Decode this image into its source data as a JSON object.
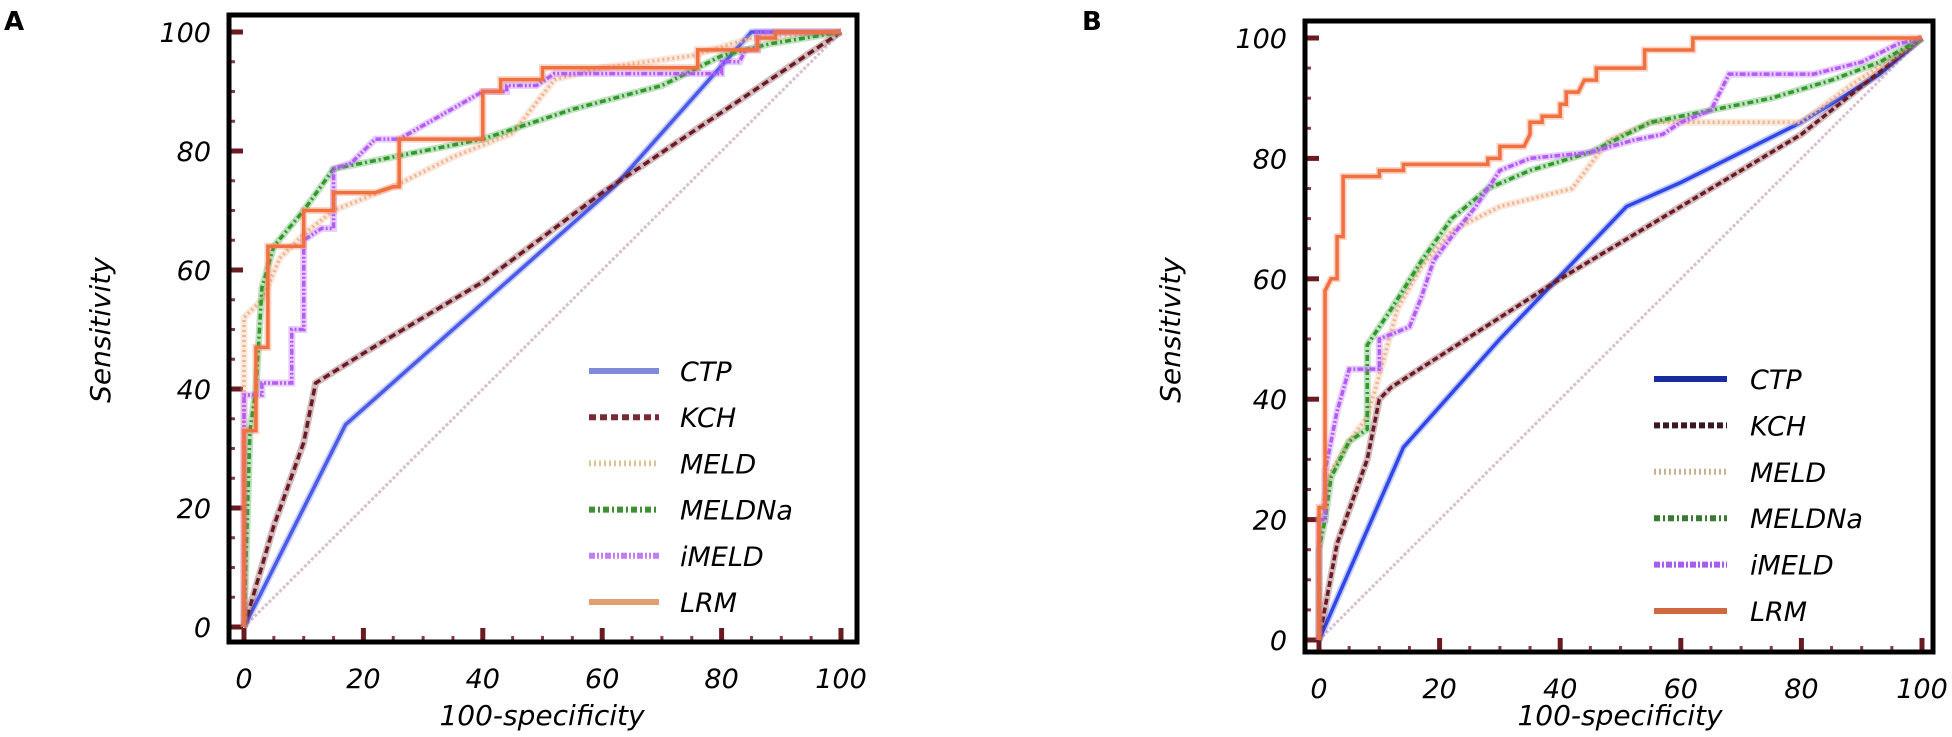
{
  "chart_data": [
    {
      "type": "line",
      "panel_label": "A",
      "title": "",
      "xlabel": "100-specificity",
      "ylabel": "Sensitivity",
      "xlim": [
        0,
        100
      ],
      "ylim": [
        0,
        100
      ],
      "xticks": [
        0,
        20,
        40,
        60,
        80,
        100
      ],
      "yticks": [
        0,
        20,
        40,
        60,
        80,
        100
      ],
      "grid": false,
      "legend_position": "bottom-right",
      "reference_line": {
        "name": "Reference",
        "color": "#d8bfcf",
        "x": [
          0,
          100
        ],
        "y": [
          0,
          100
        ]
      },
      "series": [
        {
          "name": "CTP",
          "color": "#4a5be8",
          "legend_color": "#7f8ad9",
          "dash": "",
          "x": [
            0,
            17,
            62,
            85,
            100
          ],
          "y": [
            0,
            34,
            74,
            100,
            100
          ]
        },
        {
          "name": "KCH",
          "color": "#6b1a24",
          "legend_color": "#7a2a35",
          "dash": "7,4",
          "x": [
            0,
            5,
            10,
            12,
            20,
            40,
            60,
            100
          ],
          "y": [
            0,
            17,
            31,
            41,
            46,
            58,
            73,
            100
          ]
        },
        {
          "name": "MELD",
          "color": "#f0b48f",
          "legend_color": "#dcc49a",
          "dash": "2,3",
          "x": [
            0,
            0,
            3,
            6,
            10,
            15,
            25,
            35,
            45,
            52,
            60,
            75,
            85,
            100
          ],
          "y": [
            0,
            52,
            55,
            62,
            66,
            70,
            74,
            79,
            83,
            92,
            94,
            96,
            99,
            100
          ]
        },
        {
          "name": "MELDNa",
          "color": "#2f9a2a",
          "legend_color": "#3f8f35",
          "dash": "6,3,2,3",
          "x": [
            0,
            1,
            2,
            3,
            5,
            10,
            15,
            20,
            30,
            40,
            55,
            70,
            80,
            88,
            100
          ],
          "y": [
            0,
            33,
            40,
            57,
            64,
            70,
            77,
            78,
            80,
            82,
            87,
            91,
            96,
            98,
            100
          ]
        },
        {
          "name": "iMELD",
          "color": "#b45cf5",
          "legend_color": "#c07ef2",
          "dash": "6,2,2,2,2,2",
          "x": [
            0,
            0,
            3,
            3,
            8,
            8,
            10,
            10,
            13,
            15,
            15,
            18,
            20,
            22,
            26,
            40,
            44,
            44,
            49,
            52,
            80,
            80,
            83,
            84,
            86,
            86,
            100
          ],
          "y": [
            0,
            39,
            39,
            41,
            41,
            50,
            50,
            65,
            67,
            67,
            77,
            78,
            80,
            82,
            82,
            90,
            90,
            91,
            91,
            93,
            93,
            95,
            95,
            97,
            97,
            100,
            100
          ]
        },
        {
          "name": "LRM",
          "color": "#f07040",
          "legend_color": "#e0a070",
          "dash": "",
          "x": [
            0,
            0,
            2,
            2,
            4,
            4,
            10,
            10,
            15,
            15,
            22,
            25,
            26,
            26,
            40,
            40,
            43,
            43,
            50,
            50,
            76,
            76,
            86,
            86,
            89,
            89,
            100
          ],
          "y": [
            0,
            33,
            33,
            47,
            47,
            64,
            64,
            70,
            70,
            73,
            73,
            74,
            74,
            82,
            82,
            90,
            90,
            92,
            92,
            94,
            94,
            97,
            97,
            99,
            99,
            100,
            100
          ]
        }
      ]
    },
    {
      "type": "line",
      "panel_label": "B",
      "title": "",
      "xlabel": "100-specificity",
      "ylabel": "Sensitivity",
      "xlim": [
        0,
        100
      ],
      "ylim": [
        0,
        100
      ],
      "xticks": [
        0,
        20,
        40,
        60,
        80,
        100
      ],
      "yticks": [
        0,
        20,
        40,
        60,
        80,
        100
      ],
      "grid": false,
      "legend_position": "bottom-right",
      "reference_line": {
        "name": "Reference",
        "color": "#d8bfcf",
        "x": [
          0,
          100
        ],
        "y": [
          0,
          100
        ]
      },
      "series": [
        {
          "name": "CTP",
          "color": "#3048e8",
          "legend_color": "#1a2aa0",
          "dash": "",
          "x": [
            0,
            14,
            30,
            51,
            60,
            80,
            93,
            100
          ],
          "y": [
            0,
            32,
            50,
            72,
            76,
            86,
            94,
            100
          ]
        },
        {
          "name": "KCH",
          "color": "#6b1a24",
          "legend_color": "#3a1a20",
          "dash": "6,3",
          "x": [
            0,
            3,
            8,
            10,
            12,
            40,
            60,
            80,
            100
          ],
          "y": [
            0,
            16,
            30,
            40,
            42,
            60,
            72,
            84,
            100
          ]
        },
        {
          "name": "MELD",
          "color": "#f0b48f",
          "legend_color": "#c8b090",
          "dash": "2,3",
          "x": [
            0,
            0,
            2,
            5,
            8,
            10,
            13,
            17,
            22,
            30,
            42,
            48,
            55,
            80,
            88,
            100
          ],
          "y": [
            0,
            20,
            28,
            33,
            37,
            44,
            55,
            62,
            68,
            72,
            75,
            83,
            86,
            86,
            92,
            100
          ]
        },
        {
          "name": "MELDNa",
          "color": "#2f9a2a",
          "legend_color": "#3a7a35",
          "dash": "6,3,2,3",
          "x": [
            0,
            0,
            1,
            2,
            5,
            8,
            8,
            12,
            17,
            22,
            28,
            35,
            45,
            55,
            65,
            75,
            85,
            93,
            100
          ],
          "y": [
            0,
            15,
            20,
            27,
            33,
            35,
            49,
            55,
            63,
            70,
            75,
            78,
            81,
            86,
            88,
            90,
            93,
            96,
            100
          ]
        },
        {
          "name": "iMELD",
          "color": "#b45cf5",
          "legend_color": "#a85cf0",
          "dash": "6,2,2,2",
          "x": [
            0,
            0,
            1,
            1,
            2,
            3,
            5,
            10,
            10,
            15,
            17,
            19,
            22,
            26,
            30,
            35,
            45,
            52,
            57,
            60,
            65,
            68,
            82,
            90,
            96,
            100
          ],
          "y": [
            0,
            20,
            20,
            28,
            33,
            38,
            45,
            45,
            50,
            52,
            57,
            63,
            67,
            72,
            78,
            80,
            81,
            83,
            84,
            86,
            88,
            94,
            94,
            96,
            99,
            100
          ]
        },
        {
          "name": "LRM",
          "color": "#f07040",
          "legend_color": "#d06840",
          "dash": "",
          "x": [
            0,
            0,
            1,
            1,
            2,
            3,
            3,
            4,
            4,
            10,
            10,
            14,
            14,
            28,
            28,
            30,
            30,
            34,
            35,
            35,
            37,
            37,
            40,
            40,
            41,
            41,
            43,
            44,
            46,
            46,
            54,
            54,
            62,
            62,
            100
          ],
          "y": [
            0,
            22,
            22,
            58,
            60,
            60,
            67,
            67,
            77,
            77,
            78,
            78,
            79,
            79,
            80,
            80,
            82,
            82,
            84,
            86,
            86,
            87,
            87,
            89,
            89,
            91,
            91,
            93,
            93,
            95,
            95,
            98,
            98,
            100,
            100
          ]
        }
      ]
    }
  ]
}
